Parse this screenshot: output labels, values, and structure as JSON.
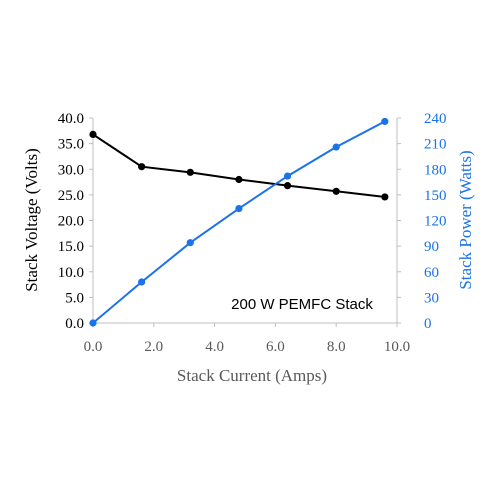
{
  "chart_data": {
    "type": "line",
    "annotation": "200 W PEMFC Stack",
    "x_axis": {
      "label": "Stack Current (Amps)",
      "range": [
        0,
        10
      ],
      "ticks": [
        "0.0",
        "2.0",
        "4.0",
        "6.0",
        "8.0",
        "10.0"
      ]
    },
    "y_axis_left": {
      "label": "Stack Voltage (Volts)",
      "range": [
        0,
        40
      ],
      "ticks": [
        "0.0",
        "5.0",
        "10.0",
        "15.0",
        "20.0",
        "25.0",
        "30.0",
        "35.0",
        "40.0"
      ]
    },
    "y_axis_right": {
      "label": "Stack Power (Watts)",
      "range": [
        0,
        240
      ],
      "ticks": [
        "0",
        "30",
        "60",
        "90",
        "120",
        "150",
        "180",
        "210",
        "240"
      ]
    },
    "grid": false,
    "series": [
      {
        "axis": "left",
        "color": "#000000",
        "x": [
          0.0,
          1.6,
          3.2,
          4.8,
          6.4,
          8.0,
          9.6
        ],
        "y": [
          36.8,
          30.5,
          29.4,
          28.0,
          26.8,
          25.7,
          24.6
        ]
      },
      {
        "axis": "right",
        "color": "#1a73e8",
        "x": [
          0.0,
          1.6,
          3.2,
          4.8,
          6.4,
          8.0,
          9.6
        ],
        "y": [
          0,
          48,
          94,
          134,
          172,
          206,
          236
        ]
      }
    ]
  }
}
